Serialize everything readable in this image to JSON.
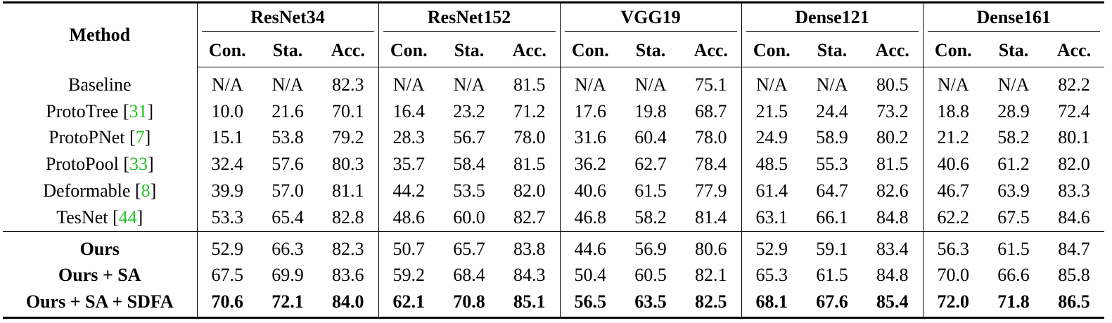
{
  "table": {
    "header": {
      "method": "Method",
      "groups": [
        {
          "name": "ResNet34",
          "columns": [
            "Con.",
            "Sta.",
            "Acc."
          ]
        },
        {
          "name": "ResNet152",
          "columns": [
            "Con.",
            "Sta.",
            "Acc."
          ]
        },
        {
          "name": "VGG19",
          "columns": [
            "Con.",
            "Sta.",
            "Acc."
          ]
        },
        {
          "name": "Dense121",
          "columns": [
            "Con.",
            "Sta.",
            "Acc."
          ]
        },
        {
          "name": "Dense161",
          "columns": [
            "Con.",
            "Sta.",
            "Acc."
          ]
        }
      ]
    },
    "sections": [
      {
        "rows": [
          {
            "method": [
              "Baseline"
            ],
            "values": [
              "N/A",
              "N/A",
              "82.3",
              "N/A",
              "N/A",
              "81.5",
              "N/A",
              "N/A",
              "75.1",
              "N/A",
              "N/A",
              "80.5",
              "N/A",
              "N/A",
              "82.2"
            ]
          },
          {
            "method": [
              "ProtoTree [",
              "31",
              "]"
            ],
            "values": [
              "10.0",
              "21.6",
              "70.1",
              "16.4",
              "23.2",
              "71.2",
              "17.6",
              "19.8",
              "68.7",
              "21.5",
              "24.4",
              "73.2",
              "18.8",
              "28.9",
              "72.4"
            ]
          },
          {
            "method": [
              "ProtoPNet [",
              "7",
              "]"
            ],
            "values": [
              "15.1",
              "53.8",
              "79.2",
              "28.3",
              "56.7",
              "78.0",
              "31.6",
              "60.4",
              "78.0",
              "24.9",
              "58.9",
              "80.2",
              "21.2",
              "58.2",
              "80.1"
            ]
          },
          {
            "method": [
              "ProtoPool [",
              "33",
              "]"
            ],
            "values": [
              "32.4",
              "57.6",
              "80.3",
              "35.7",
              "58.4",
              "81.5",
              "36.2",
              "62.7",
              "78.4",
              "48.5",
              "55.3",
              "81.5",
              "40.6",
              "61.2",
              "82.0"
            ]
          },
          {
            "method": [
              "Deformable [",
              "8",
              "]"
            ],
            "values": [
              "39.9",
              "57.0",
              "81.1",
              "44.2",
              "53.5",
              "82.0",
              "40.6",
              "61.5",
              "77.9",
              "61.4",
              "64.7",
              "82.6",
              "46.7",
              "63.9",
              "83.3"
            ]
          },
          {
            "method": [
              "TesNet [",
              "44",
              "]"
            ],
            "values": [
              "53.3",
              "65.4",
              "82.8",
              "48.6",
              "60.0",
              "82.7",
              "46.8",
              "58.2",
              "81.4",
              "63.1",
              "66.1",
              "84.8",
              "62.2",
              "67.5",
              "84.6"
            ]
          }
        ]
      },
      {
        "rows": [
          {
            "method": [
              "Ours"
            ],
            "bold_method": true,
            "values": [
              "52.9",
              "66.3",
              "82.3",
              "50.7",
              "65.7",
              "83.8",
              "44.6",
              "56.9",
              "80.6",
              "52.9",
              "59.1",
              "83.4",
              "56.3",
              "61.5",
              "84.7"
            ]
          },
          {
            "method": [
              "Ours + SA"
            ],
            "bold_method": true,
            "values": [
              "67.5",
              "69.9",
              "83.6",
              "59.2",
              "68.4",
              "84.3",
              "50.4",
              "60.5",
              "82.1",
              "65.3",
              "61.5",
              "84.8",
              "70.0",
              "66.6",
              "85.8"
            ]
          },
          {
            "method": [
              "Ours + SA + SDFA"
            ],
            "bold_method": true,
            "bold_values": true,
            "values": [
              "70.6",
              "72.1",
              "84.0",
              "62.1",
              "70.8",
              "85.1",
              "56.5",
              "63.5",
              "82.5",
              "68.1",
              "67.6",
              "85.4",
              "72.0",
              "71.8",
              "86.5"
            ]
          }
        ]
      }
    ]
  }
}
